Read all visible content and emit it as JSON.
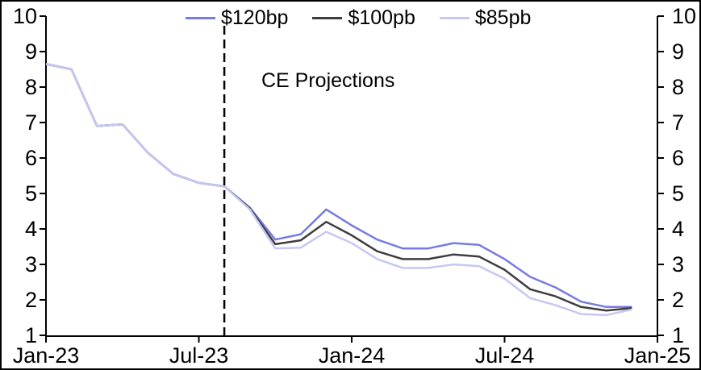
{
  "chart_data": {
    "type": "line",
    "annotation": "CE Projections",
    "legend_position": "top",
    "grid": false,
    "ylim": [
      1,
      10
    ],
    "y_ticks": [
      1,
      2,
      3,
      4,
      5,
      6,
      7,
      8,
      9,
      10
    ],
    "x": [
      "Jan-23",
      "Feb-23",
      "Mar-23",
      "Apr-23",
      "May-23",
      "Jun-23",
      "Jul-23",
      "Aug-23",
      "Sep-23",
      "Oct-23",
      "Nov-23",
      "Dec-23",
      "Jan-24",
      "Feb-24",
      "Mar-24",
      "Apr-24",
      "May-24",
      "Jun-24",
      "Jul-24",
      "Aug-24",
      "Sep-24",
      "Oct-24",
      "Nov-24",
      "Dec-24"
    ],
    "x_tick_labels": [
      "Jan-23",
      "Jul-23",
      "Jan-24",
      "Jul-24",
      "Jan-25"
    ],
    "x_tick_month_index": [
      0,
      6,
      12,
      18,
      24
    ],
    "projection_start_label": "Aug-23",
    "projection_start_index": 7,
    "divider_color": "#000000",
    "series": [
      {
        "name": "$120bp",
        "color": "#777be3",
        "values": [
          8.65,
          8.5,
          6.9,
          6.95,
          6.15,
          5.55,
          5.3,
          5.2,
          4.6,
          3.7,
          3.85,
          4.55,
          4.1,
          3.7,
          3.45,
          3.45,
          3.6,
          3.55,
          3.15,
          2.65,
          2.35,
          1.95,
          1.8,
          1.8
        ]
      },
      {
        "name": "$100pb",
        "color": "#3e3e3e",
        "values": [
          8.65,
          8.5,
          6.9,
          6.95,
          6.15,
          5.55,
          5.3,
          5.2,
          4.58,
          3.57,
          3.68,
          4.2,
          3.82,
          3.37,
          3.15,
          3.15,
          3.28,
          3.22,
          2.85,
          2.3,
          2.1,
          1.8,
          1.7,
          1.77
        ]
      },
      {
        "name": "$85pb",
        "color": "#c6c8f3",
        "values": [
          8.65,
          8.5,
          6.9,
          6.95,
          6.15,
          5.55,
          5.3,
          5.2,
          4.55,
          3.45,
          3.47,
          3.92,
          3.6,
          3.15,
          2.9,
          2.9,
          3.0,
          2.95,
          2.6,
          2.05,
          1.85,
          1.6,
          1.57,
          1.73
        ]
      }
    ]
  }
}
